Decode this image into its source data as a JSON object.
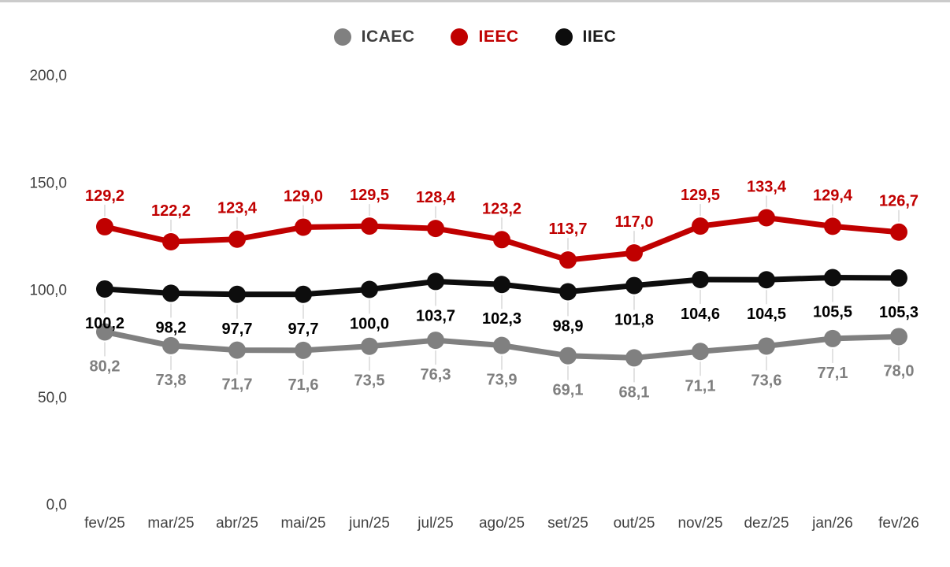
{
  "page": {
    "background_color": "#ffffff",
    "top_border_color": "#cbcbcb",
    "leader_line_color": "#d9d9d9",
    "axis_text_color": "#404040"
  },
  "chart_data": {
    "type": "line",
    "title": "",
    "xlabel": "",
    "ylabel": "",
    "grid": false,
    "legend_position": "top",
    "decimal_separator": ",",
    "categories": [
      "fev/25",
      "mar/25",
      "abr/25",
      "mai/25",
      "jun/25",
      "jul/25",
      "ago/25",
      "set/25",
      "out/25",
      "nov/25",
      "dez/25",
      "jan/26",
      "fev/26"
    ],
    "ylim": [
      0,
      200
    ],
    "yticks": [
      {
        "value": 200,
        "label": "200,0"
      },
      {
        "value": 150,
        "label": "150,0"
      },
      {
        "value": 100,
        "label": "100,0"
      },
      {
        "value": 50,
        "label": "50,0"
      },
      {
        "value": 0,
        "label": "0,0"
      }
    ],
    "series": [
      {
        "name": "ICAEC",
        "color": "#808080",
        "label_color": "#7f7f7f",
        "name_color": "#3f3f3f",
        "label_position": "below",
        "values": [
          80.2,
          73.8,
          71.7,
          71.6,
          73.5,
          76.3,
          73.9,
          69.1,
          68.1,
          71.1,
          73.6,
          77.1,
          78.0
        ]
      },
      {
        "name": "IEEC",
        "color": "#c00000",
        "label_color": "#c00000",
        "name_color": "#c00000",
        "label_position": "above",
        "values": [
          129.2,
          122.2,
          123.4,
          129.0,
          129.5,
          128.4,
          123.2,
          113.7,
          117.0,
          129.5,
          133.4,
          129.4,
          126.7
        ]
      },
      {
        "name": "IIEC",
        "color": "#0d0d0d",
        "label_color": "#000000",
        "name_color": "#1a1a1a",
        "label_position": "below",
        "values": [
          100.2,
          98.2,
          97.7,
          97.7,
          100.0,
          103.7,
          102.3,
          98.9,
          101.8,
          104.6,
          104.5,
          105.5,
          105.3
        ]
      }
    ]
  }
}
